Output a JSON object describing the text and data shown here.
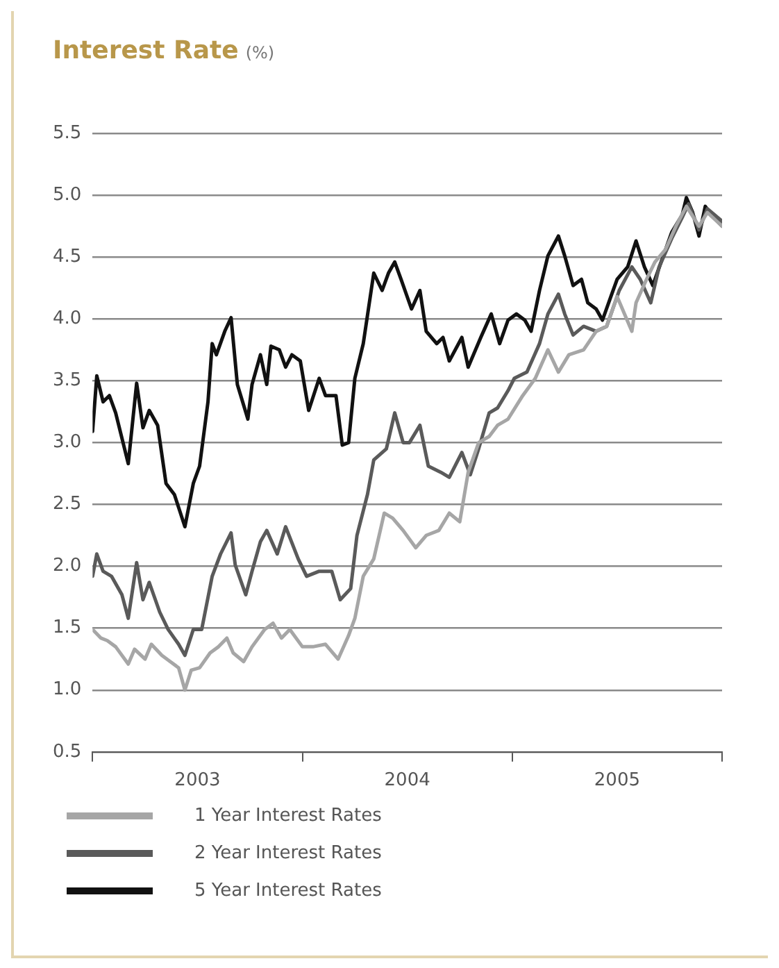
{
  "chart_data": {
    "type": "line",
    "title": "Interest Rate",
    "subtitle": "(%)",
    "xlim": [
      2003,
      2006
    ],
    "xticks": [
      {
        "value": 2003,
        "label": null
      },
      {
        "value": 2003.5,
        "label": "2003"
      },
      {
        "value": 2004,
        "label": null
      },
      {
        "value": 2004.5,
        "label": "2004"
      },
      {
        "value": 2005,
        "label": null
      },
      {
        "value": 2005.5,
        "label": "2005"
      },
      {
        "value": 2006,
        "label": null
      }
    ],
    "ylim": [
      0.5,
      5.5
    ],
    "yticks": [
      0.5,
      {
        "value": 1,
        "label": "1.0"
      },
      1.5,
      {
        "value": 2,
        "label": "2.0"
      },
      2.5,
      {
        "value": 3,
        "label": "3.0"
      },
      3.5,
      {
        "value": 4,
        "label": "4.0"
      },
      4.5,
      {
        "value": 5,
        "label": "5.0"
      },
      5.5
    ],
    "grid": "y",
    "legend": "bottom left",
    "marker": "none",
    "line_style": "solid",
    "series": [
      {
        "name": "1 Year Interest Rates",
        "color": "#a6a6a6",
        "x": [
          2003.0,
          2003.04,
          2003.07,
          2003.11,
          2003.17,
          2003.2,
          2003.25,
          2003.28,
          2003.33,
          2003.37,
          2003.41,
          2003.44,
          2003.47,
          2003.51,
          2003.56,
          2003.6,
          2003.64,
          2003.67,
          2003.72,
          2003.76,
          2003.82,
          2003.86,
          2003.9,
          2003.94,
          2004.0,
          2004.05,
          2004.11,
          2004.17,
          2004.22,
          2004.25,
          2004.29,
          2004.34,
          2004.39,
          2004.43,
          2004.48,
          2004.54,
          2004.59,
          2004.65,
          2004.7,
          2004.75,
          2004.79,
          2004.84,
          2004.89,
          2004.93,
          2004.98,
          2005.05,
          2005.11,
          2005.17,
          2005.22,
          2005.27,
          2005.34,
          2005.4,
          2005.45,
          2005.5,
          2005.57,
          2005.59,
          2005.64,
          2005.68,
          2005.73,
          2005.78,
          2005.83,
          2005.89,
          2005.93,
          2006.0
        ],
        "values": [
          1.49,
          1.42,
          1.4,
          1.35,
          1.21,
          1.33,
          1.25,
          1.37,
          1.28,
          1.23,
          1.18,
          1.0,
          1.16,
          1.18,
          1.3,
          1.35,
          1.42,
          1.3,
          1.23,
          1.35,
          1.49,
          1.54,
          1.42,
          1.49,
          1.35,
          1.35,
          1.37,
          1.25,
          1.44,
          1.58,
          1.92,
          2.06,
          2.43,
          2.39,
          2.29,
          2.15,
          2.25,
          2.29,
          2.43,
          2.36,
          2.76,
          3.0,
          3.05,
          3.14,
          3.19,
          3.38,
          3.52,
          3.75,
          3.57,
          3.71,
          3.75,
          3.9,
          3.94,
          4.18,
          3.9,
          4.13,
          4.32,
          4.46,
          4.56,
          4.75,
          4.91,
          4.75,
          4.86,
          4.75
        ]
      },
      {
        "name": "2 Year Interest Rates",
        "color": "#5a5a5a",
        "x": [
          2003.0,
          2003.02,
          2003.05,
          2003.09,
          2003.14,
          2003.17,
          2003.21,
          2003.24,
          2003.27,
          2003.32,
          2003.36,
          2003.41,
          2003.44,
          2003.48,
          2003.52,
          2003.57,
          2003.61,
          2003.66,
          2003.68,
          2003.73,
          2003.76,
          2003.8,
          2003.83,
          2003.88,
          2003.92,
          2003.98,
          2004.02,
          2004.08,
          2004.14,
          2004.18,
          2004.23,
          2004.26,
          2004.31,
          2004.34,
          2004.4,
          2004.44,
          2004.48,
          2004.51,
          2004.56,
          2004.6,
          2004.66,
          2004.7,
          2004.76,
          2004.8,
          2004.84,
          2004.89,
          2004.93,
          2004.98,
          2005.01,
          2005.07,
          2005.13,
          2005.17,
          2005.22,
          2005.25,
          2005.29,
          2005.34,
          2005.4,
          2005.45,
          2005.51,
          2005.57,
          2005.61,
          2005.66,
          2005.7,
          2005.76,
          2005.81,
          2005.84,
          2005.89,
          2005.93,
          2006.0
        ],
        "values": [
          1.92,
          2.1,
          1.96,
          1.92,
          1.77,
          1.58,
          2.03,
          1.73,
          1.87,
          1.63,
          1.49,
          1.37,
          1.28,
          1.49,
          1.49,
          1.92,
          2.1,
          2.27,
          2.01,
          1.77,
          1.96,
          2.2,
          2.29,
          2.1,
          2.32,
          2.06,
          1.92,
          1.96,
          1.96,
          1.73,
          1.82,
          2.25,
          2.58,
          2.86,
          2.95,
          3.24,
          3.0,
          3.0,
          3.14,
          2.81,
          2.76,
          2.72,
          2.92,
          2.74,
          2.95,
          3.24,
          3.28,
          3.42,
          3.52,
          3.57,
          3.8,
          4.04,
          4.2,
          4.04,
          3.87,
          3.94,
          3.9,
          3.94,
          4.23,
          4.42,
          4.32,
          4.13,
          4.42,
          4.65,
          4.82,
          4.93,
          4.72,
          4.89,
          4.79
        ]
      },
      {
        "name": "5 Year Interest Rates",
        "color": "#111111",
        "x": [
          2003.0,
          2003.02,
          2003.05,
          2003.08,
          2003.11,
          2003.17,
          2003.21,
          2003.24,
          2003.27,
          2003.31,
          2003.35,
          2003.39,
          2003.44,
          2003.48,
          2003.51,
          2003.55,
          2003.57,
          2003.59,
          2003.63,
          2003.66,
          2003.69,
          2003.74,
          2003.76,
          2003.8,
          2003.83,
          2003.85,
          2003.89,
          2003.92,
          2003.95,
          2003.99,
          2004.03,
          2004.08,
          2004.11,
          2004.16,
          2004.19,
          2004.22,
          2004.25,
          2004.29,
          2004.34,
          2004.38,
          2004.41,
          2004.44,
          2004.47,
          2004.52,
          2004.56,
          2004.59,
          2004.64,
          2004.67,
          2004.7,
          2004.76,
          2004.79,
          2004.85,
          2004.9,
          2004.94,
          2004.98,
          2005.02,
          2005.06,
          2005.09,
          2005.13,
          2005.17,
          2005.22,
          2005.25,
          2005.29,
          2005.33,
          2005.36,
          2005.4,
          2005.43,
          2005.47,
          2005.5,
          2005.55,
          2005.59,
          2005.63,
          2005.67,
          2005.72,
          2005.76,
          2005.81,
          2005.83,
          2005.86,
          2005.89,
          2005.92,
          2005.95,
          2006.0
        ],
        "values": [
          3.09,
          3.54,
          3.33,
          3.38,
          3.24,
          2.83,
          3.48,
          3.12,
          3.26,
          3.14,
          2.67,
          2.58,
          2.32,
          2.67,
          2.81,
          3.33,
          3.8,
          3.71,
          3.9,
          4.01,
          3.47,
          3.19,
          3.47,
          3.71,
          3.47,
          3.78,
          3.75,
          3.61,
          3.71,
          3.66,
          3.26,
          3.52,
          3.38,
          3.38,
          2.98,
          3.0,
          3.52,
          3.8,
          4.37,
          4.23,
          4.37,
          4.46,
          4.32,
          4.08,
          4.23,
          3.9,
          3.8,
          3.85,
          3.66,
          3.85,
          3.61,
          3.85,
          4.04,
          3.8,
          3.99,
          4.04,
          3.99,
          3.9,
          4.23,
          4.51,
          4.67,
          4.51,
          4.27,
          4.32,
          4.13,
          4.08,
          3.99,
          4.18,
          4.32,
          4.42,
          4.63,
          4.42,
          4.27,
          4.51,
          4.7,
          4.84,
          4.98,
          4.86,
          4.67,
          4.91,
          4.84,
          4.75
        ]
      }
    ]
  }
}
